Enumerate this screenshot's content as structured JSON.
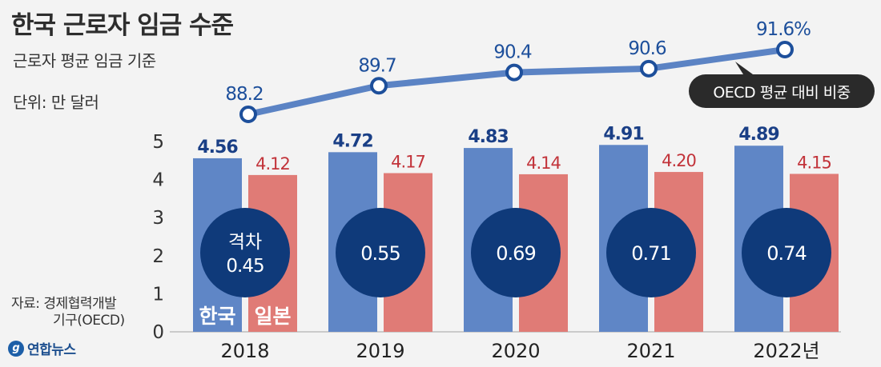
{
  "header": {
    "title": "한국 근로자 임금 수준",
    "subtitle": "근로자 평균 임금 기준",
    "unit": "단위: 만 달러"
  },
  "source": {
    "line1": "자료: 경제협력개발",
    "line2": "기구(OECD)"
  },
  "logo": {
    "mark": "g",
    "name": "연합뉴스"
  },
  "colors": {
    "korea": "#5f86c6",
    "japan": "#e07b76",
    "gap_circle": "#0f3a7a",
    "line": "#5b83c4",
    "ratio_label": "#1d4f9b",
    "japan_label": "#c2333a",
    "korea_label": "#1a3f86"
  },
  "chart_data": {
    "type": "bar",
    "categories": [
      "2018",
      "2019",
      "2020",
      "2021",
      "2022년"
    ],
    "series": [
      {
        "name": "한국",
        "values": [
          4.56,
          4.72,
          4.83,
          4.91,
          4.89
        ],
        "labels": [
          "4.56",
          "4.72",
          "4.83",
          "4.91",
          "4.89"
        ]
      },
      {
        "name": "일본",
        "values": [
          4.12,
          4.17,
          4.14,
          4.2,
          4.15
        ],
        "labels": [
          "4.12",
          "4.17",
          "4.14",
          "4.20",
          "4.15"
        ]
      }
    ],
    "gap": {
      "first_prefix": "격차",
      "values": [
        0.45,
        0.55,
        0.69,
        0.71,
        0.74
      ],
      "labels": [
        "0.45",
        "0.55",
        "0.69",
        "0.71",
        "0.74"
      ]
    },
    "ratio_line": {
      "name": "OECD 평균 대비 비중",
      "values": [
        88.2,
        89.7,
        90.4,
        90.6,
        91.6
      ],
      "labels": [
        "88.2",
        "89.7",
        "90.4",
        "90.6",
        "91.6%"
      ]
    },
    "yticks": [
      "0",
      "1",
      "2",
      "3",
      "4",
      "5"
    ],
    "ylim": [
      0,
      5
    ],
    "grid": false
  }
}
